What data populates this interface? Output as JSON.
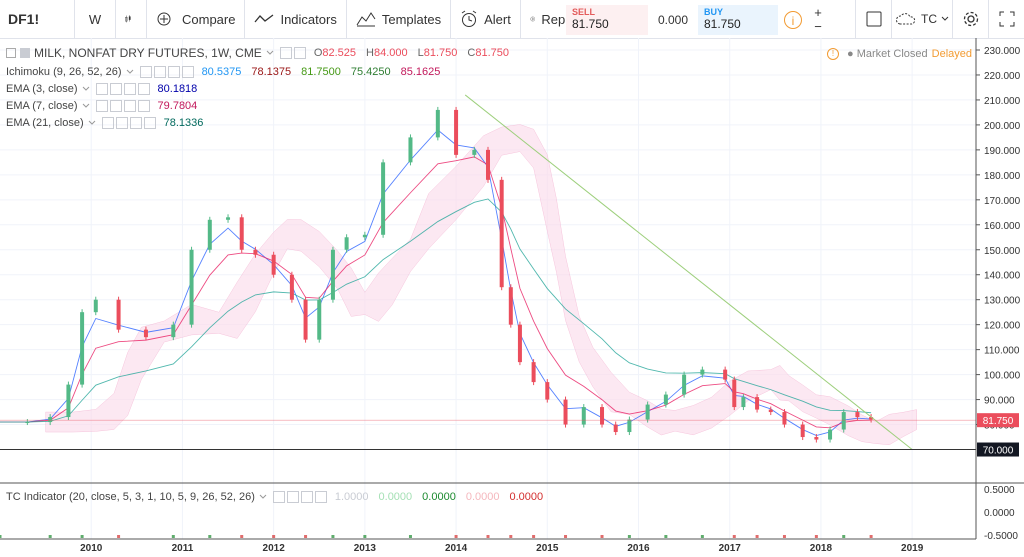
{
  "toolbar": {
    "symbol": "DF1!",
    "interval": "W",
    "compare": "Compare",
    "indicators": "Indicators",
    "templates": "Templates",
    "alert": "Alert",
    "replay": "Replay",
    "sell_label": "SELL",
    "sell_price": "81.750",
    "spread": "0.000",
    "buy_label": "BUY",
    "buy_price": "81.750",
    "plus": "+",
    "minus": "−",
    "tc": "TC"
  },
  "legend": {
    "title": "MILK, NONFAT DRY FUTURES, 1W, CME",
    "o_label": "O",
    "o": "82.525",
    "h_label": "H",
    "h": "84.000",
    "l_label": "L",
    "l": "81.750",
    "c_label": "C",
    "c": "81.750",
    "ichimoku": {
      "name": "Ichimoku (9, 26, 52, 26)",
      "v1": "80.5375",
      "v2": "78.1375",
      "v3": "81.7500",
      "v4": "75.4250",
      "v5": "85.1625"
    },
    "ema3": {
      "name": "EMA (3, close)",
      "v": "80.1818"
    },
    "ema7": {
      "name": "EMA (7, close)",
      "v": "79.7804"
    },
    "ema21": {
      "name": "EMA (21, close)",
      "v": "78.1336"
    }
  },
  "status": {
    "market": "Market Closed",
    "delayed": "Delayed"
  },
  "price_axis": {
    "ticks": [
      "230.000",
      "220.000",
      "210.000",
      "200.000",
      "190.000",
      "180.000",
      "170.000",
      "160.000",
      "150.000",
      "140.000",
      "130.000",
      "120.000",
      "110.000",
      "100.000",
      "90.000",
      "80.000"
    ],
    "last_price": "81.750",
    "line_price": "70.000"
  },
  "tc_indicator": {
    "name": "TC Indicator (20, close, 5, 3, 1, 10, 5, 9, 26, 52, 26)",
    "v1": "1.0000",
    "v2": "0.0000",
    "v3": "0.0000",
    "v4": "0.0000",
    "v5": "0.0000",
    "ticks": [
      "0.5000",
      "0.0000",
      "-0.5000"
    ]
  },
  "time_axis": [
    "2010",
    "2011",
    "2012",
    "2013",
    "2014",
    "2015",
    "2016",
    "2017",
    "2018",
    "2019"
  ],
  "colors": {
    "up": "#53b987",
    "down": "#eb4d5c",
    "cloud_up": "#e7f1fb",
    "cloud_down": "#fbdcec",
    "trendline": "#9dcf7c"
  },
  "chart_data": {
    "type": "line",
    "title": "MILK, NONFAT DRY FUTURES, 1W, CME",
    "x": [
      2009.0,
      2009.3,
      2009.55,
      2009.75,
      2009.9,
      2010.05,
      2010.3,
      2010.6,
      2010.9,
      2011.1,
      2011.3,
      2011.5,
      2011.65,
      2011.8,
      2012.0,
      2012.2,
      2012.35,
      2012.5,
      2012.65,
      2012.8,
      2013.0,
      2013.2,
      2013.5,
      2013.8,
      2014.0,
      2014.2,
      2014.35,
      2014.5,
      2014.6,
      2014.7,
      2014.85,
      2015.0,
      2015.2,
      2015.4,
      2015.6,
      2015.75,
      2015.9,
      2016.1,
      2016.3,
      2016.5,
      2016.7,
      2016.95,
      2017.05,
      2017.15,
      2017.3,
      2017.45,
      2017.6,
      2017.8,
      2017.95,
      2018.1,
      2018.25,
      2018.4,
      2018.55
    ],
    "values": [
      81,
      81,
      83,
      96,
      125,
      130,
      118,
      115,
      120,
      150,
      162,
      163,
      150,
      148,
      140,
      130,
      114,
      130,
      150,
      155,
      156,
      185,
      195,
      206,
      188,
      190,
      178,
      135,
      120,
      105,
      97,
      90,
      80,
      87,
      80,
      77,
      82,
      88,
      92,
      100,
      102,
      98,
      87,
      91,
      86,
      85,
      80,
      75,
      74,
      78,
      85,
      83,
      82
    ],
    "ylim": [
      65,
      232
    ],
    "trendline": {
      "x": [
        2014.1,
        2019.0
      ],
      "y": [
        212,
        70
      ]
    },
    "horizontal_line": 70
  }
}
